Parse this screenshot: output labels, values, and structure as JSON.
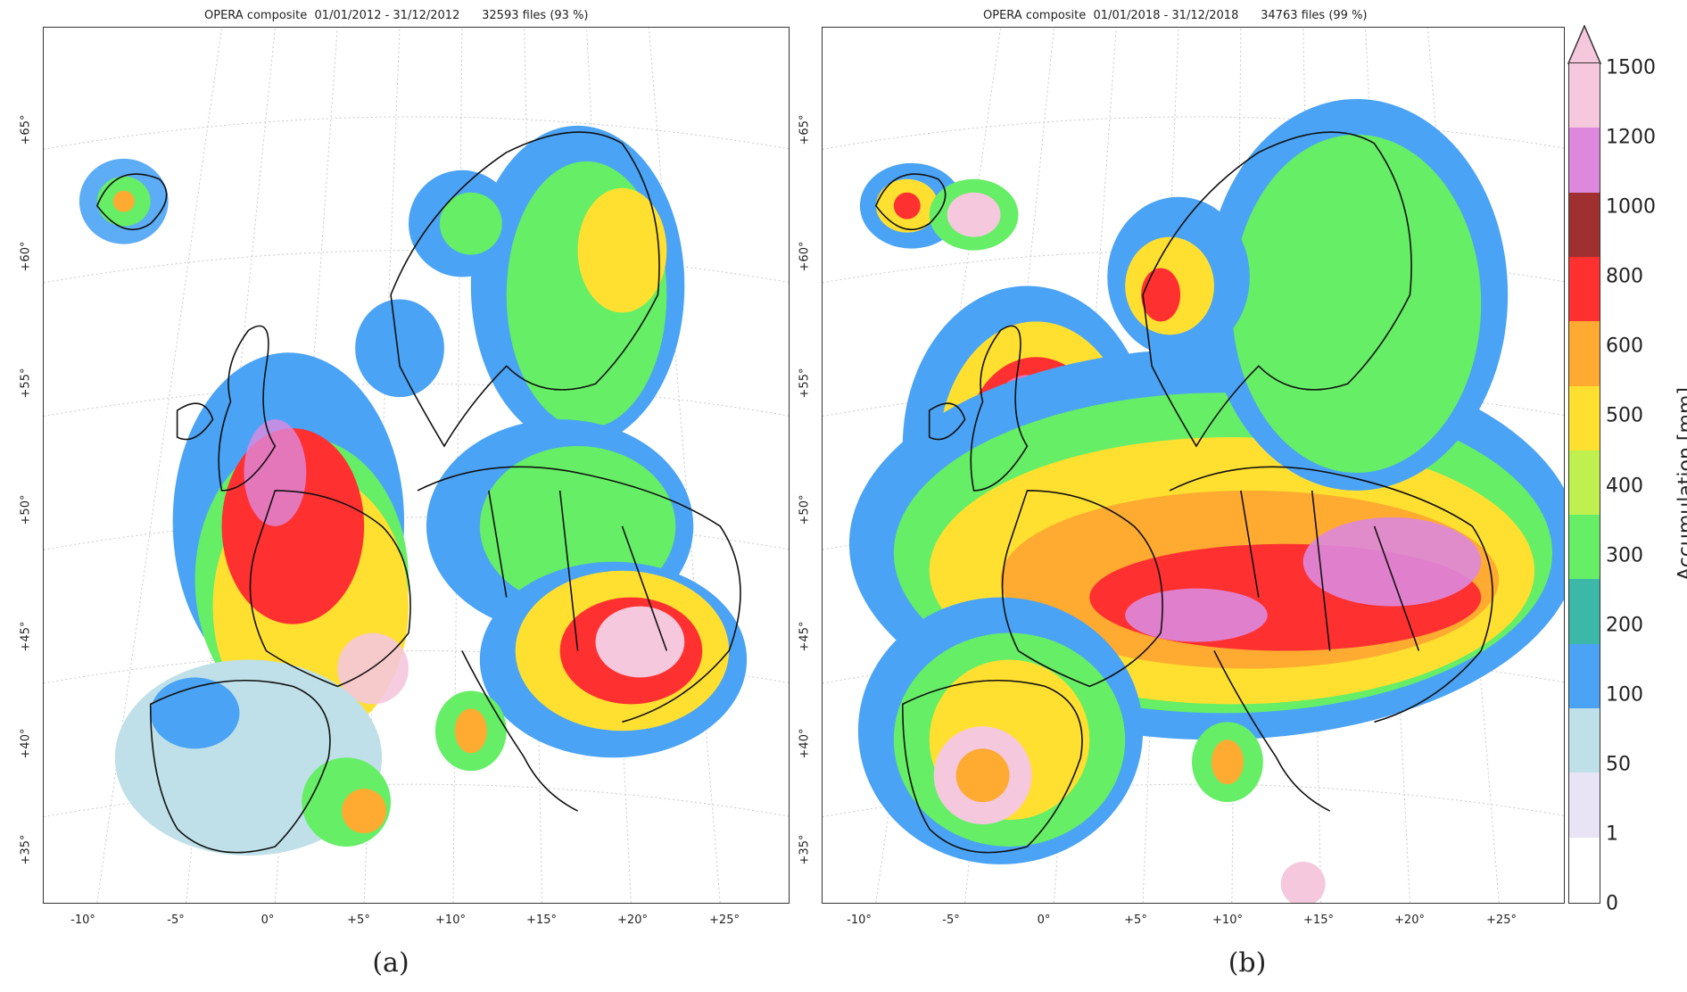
{
  "figure": {
    "panels": [
      {
        "id": "a",
        "title": "OPERA composite  01/01/2012 - 31/12/2012      32593 files (93 %)",
        "label": "(a)"
      },
      {
        "id": "b",
        "title": "OPERA composite  01/01/2018 - 31/12/2018      34763 files (99 %)",
        "label": "(b)"
      }
    ],
    "lat_labels": [
      "+65°",
      "+60°",
      "+55°",
      "+50°",
      "+45°",
      "+40°",
      "+35°"
    ],
    "lon_labels": [
      "-10°",
      "-5°",
      "0°",
      "+5°",
      "+10°",
      "+15°",
      "+20°",
      "+25°"
    ]
  },
  "colorbar": {
    "title": "Accumulation [mm]",
    "ticks": [
      "1500",
      "1200",
      "1000",
      "800",
      "600",
      "500",
      "400",
      "300",
      "200",
      "100",
      "50",
      "1",
      "0"
    ],
    "colors": [
      "#ffffff",
      "#e8e4f5",
      "#bfe0e8",
      "#4aa3f5",
      "#3cb8a8",
      "#66ee66",
      "#c0f050",
      "#ffe030",
      "#ffaa30",
      "#ff3030",
      "#a03030",
      "#dd88dd",
      "#f5c8dd"
    ]
  }
}
